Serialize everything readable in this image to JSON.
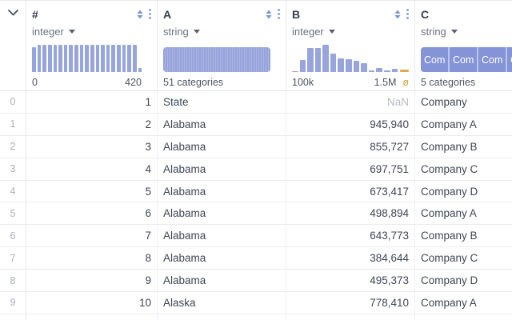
{
  "header": {
    "expand_icon": "chevron-down",
    "columns": [
      {
        "name": "#",
        "type": "integer",
        "viz": "histogram",
        "range_left": "0",
        "range_right": "420",
        "bars": [
          0.91,
          1,
          1,
          1,
          1,
          1,
          1,
          1,
          1,
          1,
          1,
          1,
          1,
          1,
          1,
          1,
          1,
          1,
          1,
          1,
          0.15
        ]
      },
      {
        "name": "A",
        "type": "string",
        "viz": "categories-solid",
        "summary": "51 categories"
      },
      {
        "name": "B",
        "type": "integer",
        "viz": "histogram",
        "range_left": "100k",
        "range_right": "1.5M",
        "bars": [
          0.04,
          0.44,
          0.89,
          0.87,
          1,
          0.67,
          0.5,
          0.47,
          0.42,
          0.31,
          0.07,
          0.14,
          0.06,
          0.11
        ],
        "null_bar": 0.09,
        "null_symbol": "ø"
      },
      {
        "name": "C",
        "type": "string",
        "viz": "category-chips",
        "summary": "5 categories",
        "chips": [
          "Com",
          "Com",
          "Com",
          "Com"
        ]
      }
    ]
  },
  "rows": [
    {
      "index": "0",
      "values": [
        "1",
        "State",
        "NaN",
        "Company"
      ]
    },
    {
      "index": "1",
      "values": [
        "2",
        "Alabama",
        "945,940",
        "Company A"
      ]
    },
    {
      "index": "2",
      "values": [
        "3",
        "Alabama",
        "855,727",
        "Company B"
      ]
    },
    {
      "index": "3",
      "values": [
        "4",
        "Alabama",
        "697,751",
        "Company C"
      ]
    },
    {
      "index": "4",
      "values": [
        "5",
        "Alabama",
        "673,417",
        "Company D"
      ]
    },
    {
      "index": "5",
      "values": [
        "6",
        "Alabama",
        "498,894",
        "Company A"
      ]
    },
    {
      "index": "6",
      "values": [
        "7",
        "Alabama",
        "643,773",
        "Company B"
      ]
    },
    {
      "index": "7",
      "values": [
        "8",
        "Alabama",
        "384,644",
        "Company C"
      ]
    },
    {
      "index": "8",
      "values": [
        "9",
        "Alabama",
        "495,373",
        "Company D"
      ]
    },
    {
      "index": "9",
      "values": [
        "10",
        "Alaska",
        "778,410",
        "Company A"
      ]
    }
  ],
  "colors": {
    "bar_blue": "#97a5dc",
    "chip_blue": "#8593d7",
    "icon_blue": "#7b96d6",
    "null_amber": "#dfa84b",
    "border": "#e7e9ee",
    "nan_text": "#b6bcc6"
  }
}
